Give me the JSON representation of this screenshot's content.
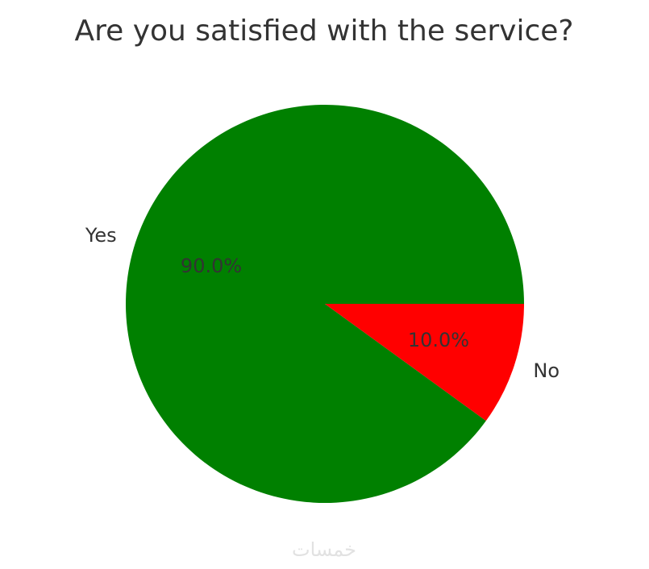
{
  "chart_data": {
    "type": "pie",
    "title": "Are you satisfied with the service?",
    "categories": [
      "Yes",
      "No"
    ],
    "values": [
      90,
      10
    ],
    "value_labels": [
      "90.0%",
      "10.0%"
    ],
    "colors": [
      "#008000",
      "#ff0000"
    ],
    "watermark": "خمسات"
  }
}
